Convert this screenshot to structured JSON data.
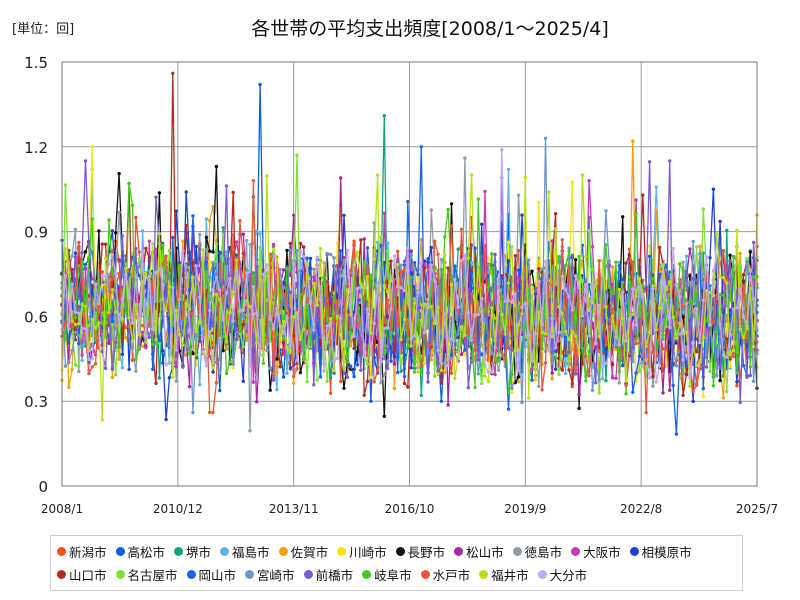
{
  "unit_label": "[単位：回]",
  "chart_data": {
    "type": "line",
    "title": "各世帯の平均支出頻度[2008/1～2025/4]",
    "xlabel": "",
    "ylabel": "",
    "ylim": [
      0,
      1.5
    ],
    "yticks": [
      "0",
      "0.3",
      "0.6",
      "0.9",
      "1.2",
      "1.5"
    ],
    "xticks": [
      "2008/1",
      "2010/12",
      "2013/11",
      "2016/10",
      "2019/9",
      "2022/8",
      "2025/7"
    ],
    "x_start": "2008/1",
    "x_end": "2025/7",
    "grid": true,
    "legend_position": "bottom",
    "series": [
      {
        "name": "新潟市",
        "color": "#f0541e",
        "min": 0.26,
        "max": 0.95,
        "peak": 0.95
      },
      {
        "name": "高松市",
        "color": "#0d5fd6",
        "min": 0.3,
        "max": 1.42,
        "peak": 1.42
      },
      {
        "name": "堺市",
        "color": "#12a37f",
        "min": 0.28,
        "max": 1.31,
        "peak": 1.31
      },
      {
        "name": "福島市",
        "color": "#5cb3e8",
        "min": 0.25,
        "max": 1.12,
        "peak": 1.12
      },
      {
        "name": "佐賀市",
        "color": "#f3a012",
        "min": 0.23,
        "max": 1.22,
        "peak": 1.22
      },
      {
        "name": "川崎市",
        "color": "#f6e616",
        "min": 0.27,
        "max": 1.2,
        "peak": 1.2
      },
      {
        "name": "長野市",
        "color": "#111111",
        "min": 0.18,
        "max": 1.13,
        "peak": 1.13
      },
      {
        "name": "松山市",
        "color": "#a4289e",
        "min": 0.15,
        "max": 1.09,
        "peak": 1.09
      },
      {
        "name": "徳島市",
        "color": "#8e9ca7",
        "min": 0.13,
        "max": 1.16,
        "peak": 1.16
      },
      {
        "name": "大阪市",
        "color": "#c43bb5",
        "min": 0.24,
        "max": 1.08,
        "peak": 1.08
      },
      {
        "name": "相模原市",
        "color": "#1f43c7",
        "min": 0.22,
        "max": 1.05,
        "peak": 1.05
      },
      {
        "name": "山口市",
        "color": "#b02c22",
        "min": 0.28,
        "max": 1.46,
        "peak": 1.46
      },
      {
        "name": "名古屋市",
        "color": "#7ee23a",
        "min": 0.29,
        "max": 1.17,
        "peak": 1.17
      },
      {
        "name": "岡山市",
        "color": "#1a63e6",
        "min": 0.15,
        "max": 1.2,
        "peak": 1.2
      },
      {
        "name": "宮崎市",
        "color": "#6f96c7",
        "min": 0.26,
        "max": 1.23,
        "peak": 1.23
      },
      {
        "name": "前橋市",
        "color": "#7a5bd0",
        "min": 0.23,
        "max": 1.15,
        "peak": 1.15
      },
      {
        "name": "岐阜市",
        "color": "#48c81e",
        "min": 0.2,
        "max": 1.07,
        "peak": 1.07
      },
      {
        "name": "水戸市",
        "color": "#e55a3c",
        "min": 0.26,
        "max": 1.08,
        "peak": 1.08
      },
      {
        "name": "福井市",
        "color": "#b6e01c",
        "min": 0.2,
        "max": 1.1,
        "peak": 1.1
      },
      {
        "name": "大分市",
        "color": "#c4a8f0",
        "min": 0.24,
        "max": 1.19,
        "peak": 1.19
      }
    ]
  }
}
